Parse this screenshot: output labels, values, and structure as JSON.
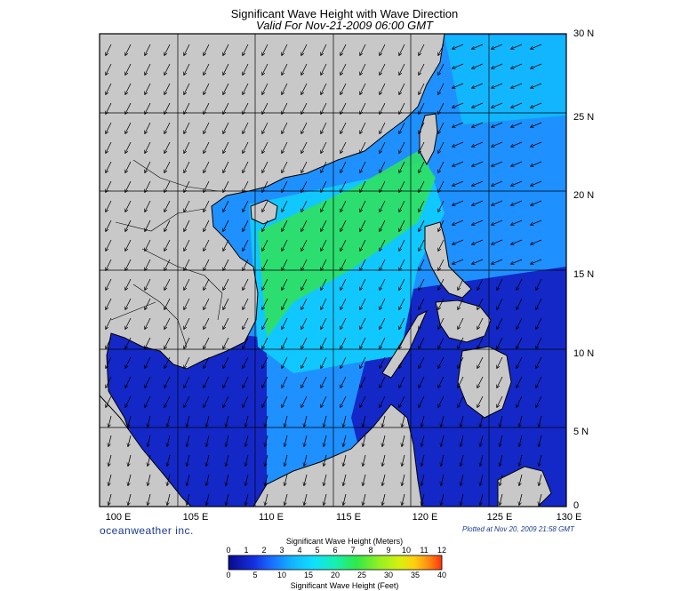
{
  "title": "Significant Wave Height with Wave Direction",
  "subtitle": "Valid For Nov-21-2009 06:00 GMT",
  "lat_labels": [
    "30 N",
    "25 N",
    "20 N",
    "15 N",
    "10 N",
    "5 N",
    "0"
  ],
  "lon_labels": [
    "100 E",
    "105 E",
    "110 E",
    "115 E",
    "120 E",
    "125 E",
    "130 E"
  ],
  "brand": "oceanweather inc.",
  "plotted": "Plotted at Nov 20, 2009 21:58 GMT",
  "legend": {
    "meters_label": "Significant Wave Height (Meters)",
    "feet_label": "Significant Wave Height (Feet)",
    "meters_ticks": [
      "0",
      "1",
      "2",
      "3",
      "4",
      "5",
      "6",
      "7",
      "8",
      "9",
      "10",
      "11",
      "12"
    ],
    "feet_ticks": [
      "0",
      "5",
      "10",
      "15",
      "20",
      "25",
      "30",
      "35",
      "40"
    ],
    "colors": [
      "#0a0a8c",
      "#1530e0",
      "#1a6cff",
      "#12b6ff",
      "#10e0ff",
      "#18f0b0",
      "#2fe84a",
      "#8ef025",
      "#d6f010",
      "#ffd010",
      "#ff8a10",
      "#ff3010"
    ]
  },
  "colors": {
    "land": "#c8c8c8",
    "deep_water": "#1428c8",
    "mid_water": "#1e90ff",
    "calm_water": "#10c8ff",
    "rough_water": "#30e060",
    "border": "#000000"
  }
}
